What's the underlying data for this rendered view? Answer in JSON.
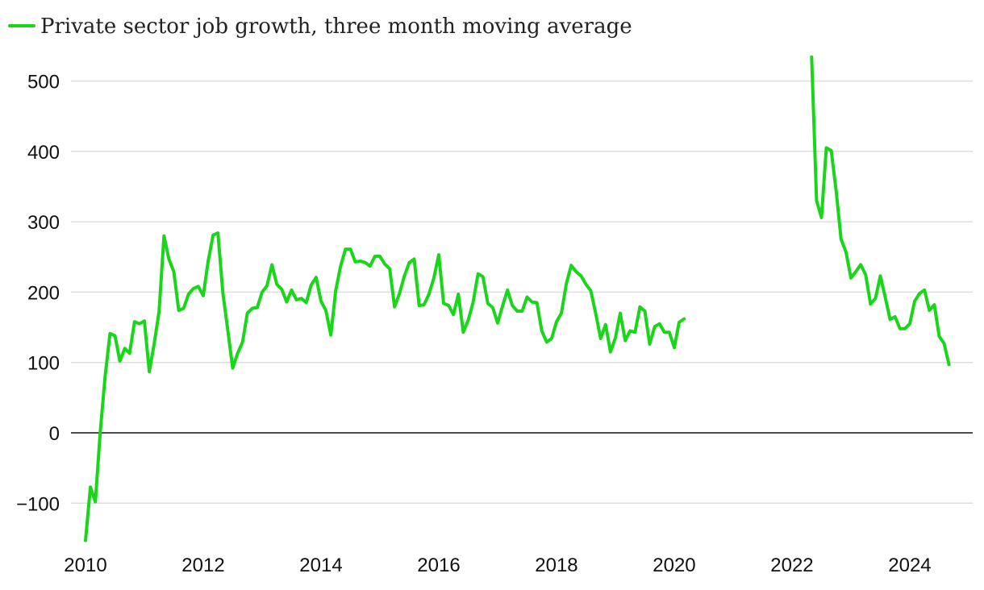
{
  "colors": {
    "series": "#1ad61a",
    "grid": "#dedede",
    "zero_line": "#111111",
    "text": "#111111"
  },
  "chart_data": {
    "type": "line",
    "title": "",
    "legend": {
      "label": "Private sector job growth, three month moving average",
      "position": "top-left"
    },
    "xlabel": "",
    "ylabel": "",
    "xlim": [
      2010,
      2024.85
    ],
    "ylim": [
      -155,
      545
    ],
    "grid": true,
    "x_ticks": [
      {
        "value": 2010,
        "label": "2010"
      },
      {
        "value": 2012,
        "label": "2012"
      },
      {
        "value": 2014,
        "label": "2014"
      },
      {
        "value": 2016,
        "label": "2016"
      },
      {
        "value": 2018,
        "label": "2018"
      },
      {
        "value": 2020,
        "label": "2020"
      },
      {
        "value": 2022,
        "label": "2022"
      },
      {
        "value": 2024,
        "label": "2024"
      }
    ],
    "y_ticks": [
      {
        "value": -100,
        "label": "−100"
      },
      {
        "value": 0,
        "label": "0"
      },
      {
        "value": 100,
        "label": "100"
      },
      {
        "value": 200,
        "label": "200"
      },
      {
        "value": 300,
        "label": "300"
      },
      {
        "value": 400,
        "label": "400"
      },
      {
        "value": 500,
        "label": "500"
      }
    ],
    "series": [
      {
        "name": "Private sector job growth, three month moving average",
        "segments": [
          [
            [
              2010.0,
              -153
            ],
            [
              2010.083,
              -77
            ],
            [
              2010.167,
              -98
            ],
            [
              2010.25,
              0
            ],
            [
              2010.333,
              80
            ],
            [
              2010.417,
              141
            ],
            [
              2010.5,
              138
            ],
            [
              2010.583,
              102
            ],
            [
              2010.667,
              120
            ],
            [
              2010.75,
              113
            ],
            [
              2010.833,
              158
            ],
            [
              2010.917,
              155
            ],
            [
              2011.0,
              159
            ],
            [
              2011.083,
              87
            ],
            [
              2011.167,
              127
            ],
            [
              2011.25,
              172
            ],
            [
              2011.333,
              280
            ],
            [
              2011.417,
              247
            ],
            [
              2011.5,
              229
            ],
            [
              2011.583,
              174
            ],
            [
              2011.667,
              177
            ],
            [
              2011.75,
              197
            ],
            [
              2011.833,
              205
            ],
            [
              2011.917,
              208
            ],
            [
              2012.0,
              195
            ],
            [
              2012.083,
              244
            ],
            [
              2012.167,
              281
            ],
            [
              2012.25,
              284
            ],
            [
              2012.333,
              199
            ],
            [
              2012.417,
              146
            ],
            [
              2012.5,
              92
            ],
            [
              2012.583,
              113
            ],
            [
              2012.667,
              129
            ],
            [
              2012.75,
              170
            ],
            [
              2012.833,
              177
            ],
            [
              2012.917,
              178
            ],
            [
              2013.0,
              200
            ],
            [
              2013.083,
              209
            ],
            [
              2013.167,
              239
            ],
            [
              2013.25,
              211
            ],
            [
              2013.333,
              204
            ],
            [
              2013.417,
              186
            ],
            [
              2013.5,
              203
            ],
            [
              2013.583,
              189
            ],
            [
              2013.667,
              191
            ],
            [
              2013.75,
              185
            ],
            [
              2013.833,
              210
            ],
            [
              2013.917,
              221
            ],
            [
              2014.0,
              187
            ],
            [
              2014.083,
              174
            ],
            [
              2014.167,
              139
            ],
            [
              2014.25,
              202
            ],
            [
              2014.333,
              237
            ],
            [
              2014.417,
              261
            ],
            [
              2014.5,
              261
            ],
            [
              2014.583,
              243
            ],
            [
              2014.667,
              244
            ],
            [
              2014.75,
              242
            ],
            [
              2014.833,
              237
            ],
            [
              2014.917,
              251
            ],
            [
              2015.0,
              251
            ],
            [
              2015.083,
              240
            ],
            [
              2015.167,
              233
            ],
            [
              2015.25,
              179
            ],
            [
              2015.333,
              198
            ],
            [
              2015.417,
              223
            ],
            [
              2015.5,
              242
            ],
            [
              2015.583,
              247
            ],
            [
              2015.667,
              181
            ],
            [
              2015.75,
              182
            ],
            [
              2015.833,
              197
            ],
            [
              2015.917,
              220
            ],
            [
              2016.0,
              253
            ],
            [
              2016.083,
              184
            ],
            [
              2016.167,
              181
            ],
            [
              2016.25,
              168
            ],
            [
              2016.333,
              197
            ],
            [
              2016.417,
              143
            ],
            [
              2016.5,
              160
            ],
            [
              2016.583,
              185
            ],
            [
              2016.667,
              226
            ],
            [
              2016.75,
              222
            ],
            [
              2016.833,
              184
            ],
            [
              2016.917,
              178
            ],
            [
              2017.0,
              156
            ],
            [
              2017.083,
              180
            ],
            [
              2017.167,
              203
            ],
            [
              2017.25,
              181
            ],
            [
              2017.333,
              173
            ],
            [
              2017.417,
              173
            ],
            [
              2017.5,
              193
            ],
            [
              2017.583,
              186
            ],
            [
              2017.667,
              185
            ],
            [
              2017.75,
              145
            ],
            [
              2017.833,
              129
            ],
            [
              2017.917,
              134
            ],
            [
              2018.0,
              158
            ],
            [
              2018.083,
              170
            ],
            [
              2018.167,
              212
            ],
            [
              2018.25,
              238
            ],
            [
              2018.333,
              229
            ],
            [
              2018.417,
              223
            ],
            [
              2018.5,
              211
            ],
            [
              2018.583,
              202
            ],
            [
              2018.667,
              169
            ],
            [
              2018.75,
              134
            ],
            [
              2018.833,
              154
            ],
            [
              2018.917,
              115
            ],
            [
              2019.0,
              135
            ],
            [
              2019.083,
              170
            ],
            [
              2019.167,
              131
            ],
            [
              2019.25,
              145
            ],
            [
              2019.333,
              143
            ],
            [
              2019.417,
              179
            ],
            [
              2019.5,
              173
            ],
            [
              2019.583,
              126
            ],
            [
              2019.667,
              151
            ],
            [
              2019.75,
              155
            ],
            [
              2019.833,
              143
            ],
            [
              2019.917,
              143
            ],
            [
              2020.0,
              121
            ],
            [
              2020.083,
              157
            ],
            [
              2020.167,
              162
            ]
          ],
          [
            [
              2022.333,
              534
            ],
            [
              2022.417,
              330
            ],
            [
              2022.5,
              306
            ],
            [
              2022.583,
              405
            ],
            [
              2022.667,
              401
            ],
            [
              2022.75,
              344
            ],
            [
              2022.833,
              275
            ],
            [
              2022.917,
              257
            ],
            [
              2023.0,
              220
            ],
            [
              2023.083,
              229
            ],
            [
              2023.167,
              239
            ],
            [
              2023.25,
              225
            ],
            [
              2023.333,
              183
            ],
            [
              2023.417,
              191
            ],
            [
              2023.5,
              223
            ],
            [
              2023.583,
              193
            ],
            [
              2023.667,
              161
            ],
            [
              2023.75,
              165
            ],
            [
              2023.833,
              148
            ],
            [
              2023.917,
              148
            ],
            [
              2024.0,
              155
            ],
            [
              2024.083,
              187
            ],
            [
              2024.167,
              198
            ],
            [
              2024.25,
              203
            ],
            [
              2024.333,
              174
            ],
            [
              2024.417,
              182
            ],
            [
              2024.5,
              137
            ],
            [
              2024.583,
              127
            ],
            [
              2024.667,
              97
            ]
          ]
        ]
      }
    ]
  }
}
